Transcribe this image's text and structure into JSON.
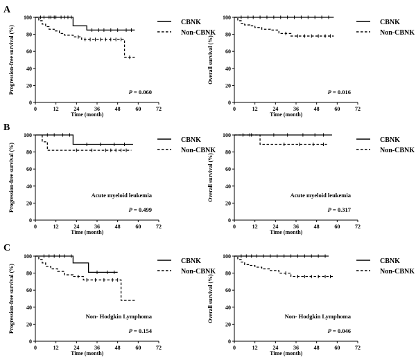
{
  "colors": {
    "line": "#000000",
    "background": "#ffffff"
  },
  "panels": [
    {
      "letter": "A",
      "letter_row": 0
    },
    {
      "letter": "B",
      "letter_row": 1
    },
    {
      "letter": "C",
      "letter_row": 2
    }
  ],
  "chart_data": [
    {
      "type": "line",
      "panel": "A",
      "row": 0,
      "col": 0,
      "xlabel": "Time (month)",
      "ylabel": "Progression-free survival (%)",
      "xlim": [
        0,
        72
      ],
      "ylim": [
        0,
        100
      ],
      "xticks": [
        "0",
        "12",
        "24",
        "36",
        "48",
        "60",
        "72"
      ],
      "yticks": [
        "0",
        "20",
        "40",
        "60",
        "80",
        "100"
      ],
      "annotation": "",
      "p_label": "P",
      "p_value": " = 0.060",
      "legend_position": "top-right",
      "series": [
        {
          "name": "CBNK",
          "style": "solid",
          "x_end": 58,
          "steps": [
            [
              0,
              100
            ],
            [
              22,
              100
            ],
            [
              22,
              90
            ],
            [
              30,
              90
            ],
            [
              30,
              85
            ],
            [
              58,
              85
            ]
          ],
          "censor": [
            3,
            5,
            8,
            9,
            11,
            12,
            15,
            17,
            19,
            21,
            33,
            37,
            40,
            44,
            48,
            53,
            56
          ]
        },
        {
          "name": "Non-CBNK",
          "style": "dashed",
          "x_end": 58,
          "steps": [
            [
              0,
              100
            ],
            [
              2,
              96
            ],
            [
              4,
              92
            ],
            [
              6,
              89
            ],
            [
              8,
              86
            ],
            [
              11,
              84
            ],
            [
              14,
              81
            ],
            [
              17,
              79
            ],
            [
              22,
              77
            ],
            [
              27,
              74
            ],
            [
              52,
              74
            ],
            [
              52,
              53
            ],
            [
              58,
              53
            ]
          ],
          "censor": [
            25,
            29,
            32,
            35,
            38,
            41,
            44,
            47,
            50,
            55
          ]
        }
      ]
    },
    {
      "type": "line",
      "panel": "A",
      "row": 0,
      "col": 1,
      "xlabel": "Time (month)",
      "ylabel": "Overall survival (%)",
      "xlim": [
        0,
        72
      ],
      "ylim": [
        0,
        100
      ],
      "xticks": [
        "0",
        "12",
        "24",
        "36",
        "48",
        "60",
        "72"
      ],
      "yticks": [
        "0",
        "20",
        "40",
        "60",
        "80",
        "100"
      ],
      "annotation": "",
      "p_label": "P",
      "p_value": " = 0.016",
      "legend_position": "top-right",
      "series": [
        {
          "name": "CBNK",
          "style": "solid",
          "x_end": 58,
          "steps": [
            [
              0,
              100
            ],
            [
              58,
              100
            ]
          ],
          "censor": [
            4,
            8,
            11,
            15,
            19,
            23,
            27,
            31,
            35,
            39,
            43,
            47,
            51,
            55
          ]
        },
        {
          "name": "Non-CBNK",
          "style": "dashed",
          "x_end": 58,
          "steps": [
            [
              0,
              100
            ],
            [
              2,
              96
            ],
            [
              4,
              93
            ],
            [
              6,
              91
            ],
            [
              9,
              90
            ],
            [
              12,
              88
            ],
            [
              16,
              86
            ],
            [
              21,
              85
            ],
            [
              26,
              81
            ],
            [
              33,
              78
            ],
            [
              58,
              78
            ]
          ],
          "censor": [
            30,
            37,
            41,
            45,
            49,
            53,
            56
          ]
        }
      ]
    },
    {
      "type": "line",
      "panel": "B",
      "row": 1,
      "col": 0,
      "xlabel": "Time (month)",
      "ylabel": "Progression-free survival (%)",
      "xlim": [
        0,
        72
      ],
      "ylim": [
        0,
        100
      ],
      "xticks": [
        "0",
        "12",
        "24",
        "36",
        "48",
        "60",
        "72"
      ],
      "yticks": [
        "0",
        "20",
        "40",
        "60",
        "80",
        "100"
      ],
      "annotation": "Acute myeloid leukemia",
      "p_label": "P",
      "p_value": " = 0.499",
      "legend_position": "top-right",
      "series": [
        {
          "name": "CBNK",
          "style": "solid",
          "x_end": 57,
          "steps": [
            [
              0,
              100
            ],
            [
              22,
              100
            ],
            [
              22,
              89
            ],
            [
              57,
              89
            ]
          ],
          "censor": [
            7,
            11,
            16,
            20,
            30,
            38,
            46,
            52
          ]
        },
        {
          "name": "Non-CBNK",
          "style": "dashed",
          "x_end": 56,
          "steps": [
            [
              4,
              100
            ],
            [
              4,
              92
            ],
            [
              7,
              92
            ],
            [
              7,
              82
            ],
            [
              56,
              82
            ]
          ],
          "censor": [
            24,
            33,
            41,
            44,
            47,
            50,
            53
          ]
        }
      ]
    },
    {
      "type": "line",
      "panel": "B",
      "row": 1,
      "col": 1,
      "xlabel": "Time (month)",
      "ylabel": "Overall survival (%)",
      "xlim": [
        0,
        72
      ],
      "ylim": [
        0,
        100
      ],
      "xticks": [
        "0",
        "12",
        "24",
        "36",
        "48",
        "60",
        "72"
      ],
      "yticks": [
        "0",
        "20",
        "40",
        "60",
        "80",
        "100"
      ],
      "annotation": "Acute myeloid leukemia",
      "p_label": "P",
      "p_value": " = 0.317",
      "legend_position": "top-right",
      "series": [
        {
          "name": "CBNK",
          "style": "solid",
          "x_end": 57,
          "steps": [
            [
              0,
              100
            ],
            [
              57,
              100
            ]
          ],
          "censor": [
            10,
            23,
            31,
            40,
            47,
            52
          ]
        },
        {
          "name": "Non-CBNK",
          "style": "dashed",
          "x_end": 54,
          "steps": [
            [
              0,
              100
            ],
            [
              15,
              100
            ],
            [
              15,
              89
            ],
            [
              54,
              89
            ]
          ],
          "censor": [
            5,
            9,
            29,
            38,
            46,
            52
          ]
        }
      ]
    },
    {
      "type": "line",
      "panel": "C",
      "row": 2,
      "col": 0,
      "xlabel": "Time (month)",
      "ylabel": "Progression-free survival (%)",
      "xlim": [
        0,
        72
      ],
      "ylim": [
        0,
        100
      ],
      "xticks": [
        "0",
        "12",
        "24",
        "36",
        "48",
        "60",
        "72"
      ],
      "yticks": [
        "0",
        "20",
        "40",
        "60",
        "80",
        "100"
      ],
      "annotation": "Non- Hodgkin Lymphoma",
      "p_label": "P",
      "p_value": " = 0.154",
      "legend_position": "top-right",
      "series": [
        {
          "name": "CBNK",
          "style": "solid",
          "x_end": 48,
          "steps": [
            [
              0,
              100
            ],
            [
              22,
              100
            ],
            [
              22,
              92
            ],
            [
              31,
              92
            ],
            [
              31,
              81
            ],
            [
              48,
              81
            ]
          ],
          "censor": [
            5,
            8,
            11,
            14,
            17,
            21,
            36,
            42,
            46
          ]
        },
        {
          "name": "Non-CBNK",
          "style": "dashed",
          "x_end": 58,
          "steps": [
            [
              0,
              100
            ],
            [
              2,
              96
            ],
            [
              4,
              92
            ],
            [
              6,
              88
            ],
            [
              9,
              85
            ],
            [
              13,
              82
            ],
            [
              17,
              78
            ],
            [
              22,
              76
            ],
            [
              28,
              72
            ],
            [
              50,
              72
            ],
            [
              50,
              48
            ],
            [
              58,
              48
            ]
          ],
          "censor": [
            25,
            30,
            35,
            40,
            45,
            48
          ]
        }
      ]
    },
    {
      "type": "line",
      "panel": "C",
      "row": 2,
      "col": 1,
      "xlabel": "Time (month)",
      "ylabel": "Overall survival (%)",
      "xlim": [
        0,
        72
      ],
      "ylim": [
        0,
        100
      ],
      "xticks": [
        "0",
        "12",
        "24",
        "36",
        "48",
        "60",
        "72"
      ],
      "yticks": [
        "0",
        "20",
        "40",
        "60",
        "80",
        "100"
      ],
      "annotation": "Non- Hodgkin Lymphoma",
      "p_label": "P",
      "p_value": " = 0.046",
      "legend_position": "top-right",
      "series": [
        {
          "name": "CBNK",
          "style": "solid",
          "x_end": 55,
          "steps": [
            [
              0,
              100
            ],
            [
              55,
              100
            ]
          ],
          "censor": [
            4,
            7,
            10,
            13,
            17,
            21,
            25,
            29,
            33,
            37,
            41,
            45,
            49,
            53
          ]
        },
        {
          "name": "Non-CBNK",
          "style": "dashed",
          "x_end": 58,
          "steps": [
            [
              0,
              100
            ],
            [
              2,
              96
            ],
            [
              4,
              93
            ],
            [
              6,
              90
            ],
            [
              9,
              89
            ],
            [
              12,
              87
            ],
            [
              16,
              85
            ],
            [
              21,
              83
            ],
            [
              26,
              80
            ],
            [
              33,
              76
            ],
            [
              58,
              76
            ]
          ],
          "censor": [
            30,
            37,
            41,
            45,
            49,
            53,
            56
          ]
        }
      ]
    }
  ]
}
